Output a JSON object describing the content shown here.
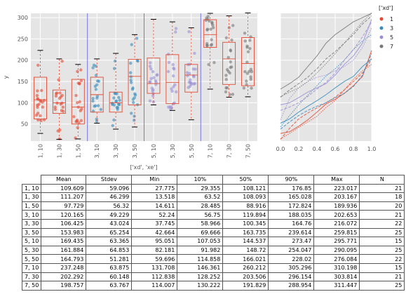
{
  "chart_data": [
    {
      "type": "box",
      "title": "",
      "xlabel": "['xd', 'xe']",
      "ylabel": "y",
      "ylim": [
        10,
        310
      ],
      "yticks": [
        50,
        100,
        150,
        200,
        250,
        300
      ],
      "categories": [
        "1, 10",
        "1, 30",
        "1, 50",
        "3, 10",
        "3, 30",
        "3, 50",
        "5, 10",
        "5, 30",
        "5, 50",
        "7, 10",
        "7, 30",
        "7, 50"
      ],
      "category_colors": [
        "#e24a33",
        "#e24a33",
        "#e24a33",
        "#348abd",
        "#348abd",
        "#348abd",
        "#988ed5",
        "#988ed5",
        "#988ed5",
        "#777777",
        "#777777",
        "#777777"
      ],
      "group_separators_after": [
        2,
        5,
        8
      ],
      "boxes": [
        {
          "q1": 62,
          "median": 107,
          "q3": 160,
          "whisker_low": 28,
          "whisker_high": 223
        },
        {
          "q1": 75,
          "median": 100,
          "q3": 130,
          "whisker_low": 14,
          "whisker_high": 203
        },
        {
          "q1": 50,
          "median": 90,
          "q3": 155,
          "whisker_low": 15,
          "whisker_high": 190
        },
        {
          "q1": 78,
          "median": 119,
          "q3": 160,
          "whisker_low": 52,
          "whisker_high": 203
        },
        {
          "q1": 78,
          "median": 100,
          "q3": 125,
          "whisker_low": 38,
          "whisker_high": 216
        },
        {
          "q1": 95,
          "median": 162,
          "q3": 202,
          "whisker_low": 43,
          "whisker_high": 260
        },
        {
          "q1": 122,
          "median": 145,
          "q3": 205,
          "whisker_low": 95,
          "whisker_high": 296
        },
        {
          "q1": 98,
          "median": 148,
          "q3": 213,
          "whisker_low": 82,
          "whisker_high": 290
        },
        {
          "q1": 125,
          "median": 165,
          "q3": 190,
          "whisker_low": 60,
          "whisker_high": 276
        },
        {
          "q1": 230,
          "median": 260,
          "q3": 295,
          "whisker_low": 132,
          "whisker_high": 310
        },
        {
          "q1": 143,
          "median": 203,
          "q3": 242,
          "whisker_low": 113,
          "whisker_high": 304
        },
        {
          "q1": 140,
          "median": 192,
          "q3": 253,
          "whisker_low": 114,
          "whisker_high": 311
        }
      ]
    },
    {
      "type": "line",
      "title": "",
      "xlabel": "",
      "ylabel": "",
      "xlim": [
        0,
        1
      ],
      "xticks": [
        "0.0",
        "0.2",
        "0.4",
        "0.6",
        "0.8",
        "1.0"
      ],
      "legend_title": "['xd']",
      "legend_placement": "right, outside",
      "series": [
        {
          "name": "1",
          "color": "#e24a33",
          "style": "solid",
          "x": [
            0,
            0.1,
            0.2,
            0.3,
            0.4,
            0.5,
            0.6,
            0.7,
            0.8,
            0.9,
            1.0
          ],
          "y": [
            28,
            32,
            45,
            60,
            78,
            97,
            108,
            122,
            140,
            162,
            223
          ]
        },
        {
          "name": "1",
          "color": "#e24a33",
          "style": "dashed",
          "x": [
            0,
            0.1,
            0.2,
            0.3,
            0.4,
            0.5,
            0.6,
            0.7,
            0.8,
            0.9,
            1.0
          ],
          "y": [
            14,
            40,
            62,
            76,
            88,
            100,
            113,
            130,
            150,
            170,
            203
          ]
        },
        {
          "name": "1",
          "color": "#e24a33",
          "style": "dotted",
          "x": [
            0,
            0.1,
            0.2,
            0.3,
            0.4,
            0.5,
            0.6,
            0.7,
            0.8,
            0.9,
            1.0
          ],
          "y": [
            15,
            28,
            42,
            55,
            68,
            89,
            105,
            130,
            155,
            175,
            190
          ]
        },
        {
          "name": "3",
          "color": "#348abd",
          "style": "solid",
          "x": [
            0,
            0.1,
            0.2,
            0.3,
            0.4,
            0.5,
            0.6,
            0.7,
            0.8,
            0.9,
            1.0
          ],
          "y": [
            52,
            62,
            78,
            92,
            105,
            119,
            135,
            150,
            162,
            185,
            203
          ]
        },
        {
          "name": "3",
          "color": "#348abd",
          "style": "dashed",
          "x": [
            0,
            0.1,
            0.2,
            0.3,
            0.4,
            0.5,
            0.6,
            0.7,
            0.8,
            0.9,
            1.0
          ],
          "y": [
            38,
            55,
            70,
            82,
            92,
            100,
            112,
            122,
            138,
            165,
            216
          ]
        },
        {
          "name": "3",
          "color": "#348abd",
          "style": "dotted",
          "x": [
            0,
            0.1,
            0.2,
            0.3,
            0.4,
            0.5,
            0.6,
            0.7,
            0.8,
            0.9,
            1.0
          ],
          "y": [
            43,
            70,
            95,
            118,
            140,
            163,
            180,
            200,
            225,
            245,
            260
          ]
        },
        {
          "name": "5",
          "color": "#988ed5",
          "style": "solid",
          "x": [
            0,
            0.1,
            0.2,
            0.3,
            0.4,
            0.5,
            0.6,
            0.7,
            0.8,
            0.9,
            1.0
          ],
          "y": [
            95,
            100,
            112,
            125,
            135,
            145,
            165,
            190,
            210,
            240,
            296
          ]
        },
        {
          "name": "5",
          "color": "#988ed5",
          "style": "dashed",
          "x": [
            0,
            0.1,
            0.2,
            0.3,
            0.4,
            0.5,
            0.6,
            0.7,
            0.8,
            0.9,
            1.0
          ],
          "y": [
            82,
            90,
            100,
            115,
            132,
            148,
            170,
            200,
            225,
            255,
            290
          ]
        },
        {
          "name": "5",
          "color": "#988ed5",
          "style": "dotted",
          "x": [
            0,
            0.1,
            0.2,
            0.3,
            0.4,
            0.5,
            0.6,
            0.7,
            0.8,
            0.9,
            1.0
          ],
          "y": [
            60,
            110,
            135,
            150,
            160,
            165,
            175,
            185,
            200,
            230,
            276
          ]
        },
        {
          "name": "7",
          "color": "#777777",
          "style": "solid",
          "x": [
            0,
            0.1,
            0.2,
            0.3,
            0.4,
            0.5,
            0.6,
            0.7,
            0.8,
            0.9,
            1.0
          ],
          "y": [
            132,
            145,
            160,
            185,
            210,
            240,
            260,
            275,
            290,
            300,
            310
          ]
        },
        {
          "name": "7",
          "color": "#777777",
          "style": "dashed",
          "x": [
            0,
            0.1,
            0.2,
            0.3,
            0.4,
            0.5,
            0.6,
            0.7,
            0.8,
            0.9,
            1.0
          ],
          "y": [
            113,
            130,
            145,
            160,
            180,
            203,
            220,
            240,
            260,
            285,
            304
          ]
        },
        {
          "name": "7",
          "color": "#777777",
          "style": "dotted",
          "x": [
            0,
            0.1,
            0.2,
            0.3,
            0.4,
            0.5,
            0.6,
            0.7,
            0.8,
            0.9,
            1.0
          ],
          "y": [
            114,
            125,
            135,
            150,
            170,
            192,
            215,
            240,
            265,
            290,
            311
          ]
        }
      ],
      "legend": [
        {
          "label": "1",
          "color": "#e24a33"
        },
        {
          "label": "3",
          "color": "#348abd"
        },
        {
          "label": "5",
          "color": "#988ed5"
        },
        {
          "label": "7",
          "color": "#777777"
        }
      ]
    },
    {
      "type": "table",
      "columns": [
        "Mean",
        "Stdev",
        "Min",
        "10%",
        "50%",
        "90%",
        "Max",
        "N"
      ],
      "rows": [
        {
          "label": "1, 10",
          "values": [
            "109.609",
            "59.096",
            "27.775",
            "29.355",
            "108.121",
            "176.85",
            "223.017",
            "21"
          ]
        },
        {
          "label": "1, 30",
          "values": [
            "111.207",
            "46.299",
            "13.518",
            "63.52",
            "108.093",
            "165.028",
            "203.167",
            "18"
          ]
        },
        {
          "label": "1, 50",
          "values": [
            "97.729",
            "56.32",
            "14.611",
            "28.485",
            "88.916",
            "172.824",
            "189.936",
            "20"
          ]
        },
        {
          "label": "3, 10",
          "values": [
            "120.165",
            "49.229",
            "52.24",
            "56.75",
            "119.894",
            "188.035",
            "202.653",
            "21"
          ]
        },
        {
          "label": "3, 30",
          "values": [
            "106.425",
            "43.024",
            "37.745",
            "58.966",
            "100.345",
            "164.76",
            "216.072",
            "22"
          ]
        },
        {
          "label": "3, 50",
          "values": [
            "153.983",
            "65.254",
            "42.664",
            "69.666",
            "163.735",
            "239.614",
            "259.815",
            "25"
          ]
        },
        {
          "label": "5, 10",
          "values": [
            "169.435",
            "63.365",
            "95.051",
            "107.053",
            "144.537",
            "273.47",
            "295.771",
            "15"
          ]
        },
        {
          "label": "5, 30",
          "values": [
            "161.884",
            "64.853",
            "82.181",
            "91.982",
            "148.72",
            "254.047",
            "290.095",
            "25"
          ]
        },
        {
          "label": "5, 50",
          "values": [
            "164.793",
            "51.281",
            "59.696",
            "114.858",
            "166.021",
            "228.02",
            "276.084",
            "22"
          ]
        },
        {
          "label": "7, 10",
          "values": [
            "237.248",
            "63.875",
            "131.708",
            "146.361",
            "260.212",
            "305.296",
            "310.198",
            "15"
          ]
        },
        {
          "label": "7, 30",
          "values": [
            "202.292",
            "60.148",
            "112.838",
            "128.252",
            "203.506",
            "296.154",
            "303.814",
            "21"
          ]
        },
        {
          "label": "7, 50",
          "values": [
            "198.757",
            "63.767",
            "114.007",
            "130.222",
            "191.829",
            "288.954",
            "311.447",
            "25"
          ]
        }
      ]
    }
  ]
}
